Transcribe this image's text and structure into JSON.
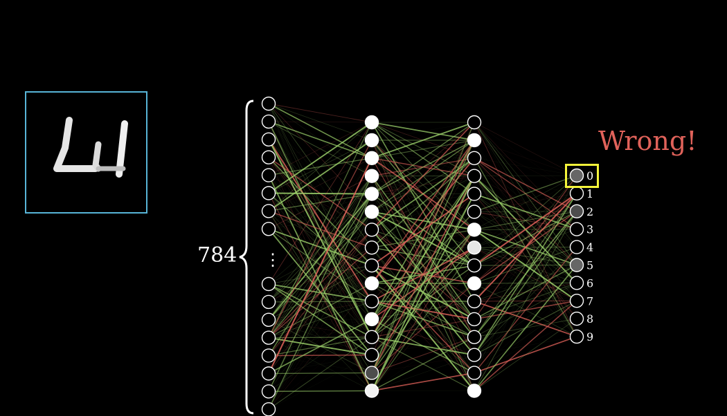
{
  "input_image": {
    "frame_color": "#58b5d8",
    "digit_pixels": "handwritten digit bitmap",
    "icon": "handwritten-digit-image"
  },
  "input_layer": {
    "count_label": "784",
    "ellipsis": "⋮"
  },
  "network": {
    "input_top_neurons": 8,
    "input_bottom_neurons": 8,
    "hidden1_activations": [
      1,
      1,
      1,
      1,
      1,
      1,
      0,
      0,
      0,
      1,
      0,
      1,
      0,
      0,
      0.3,
      0.95
    ],
    "hidden2_activations": [
      0,
      1,
      0,
      0,
      0,
      0,
      1,
      0.9,
      0,
      1,
      0,
      0,
      0,
      0,
      0,
      1
    ],
    "positive_color": "#9bd06a",
    "negative_color": "#e0625a"
  },
  "output_layer": {
    "labels": [
      "0",
      "1",
      "2",
      "3",
      "4",
      "5",
      "6",
      "7",
      "8",
      "9"
    ],
    "activations": [
      0.4,
      0,
      0.3,
      0,
      0,
      0.4,
      0,
      0,
      0,
      0
    ],
    "highlighted_index": 0,
    "highlight_color": "#f5f53a"
  },
  "verdict": {
    "text": "Wrong!",
    "color": "#e0625a"
  }
}
